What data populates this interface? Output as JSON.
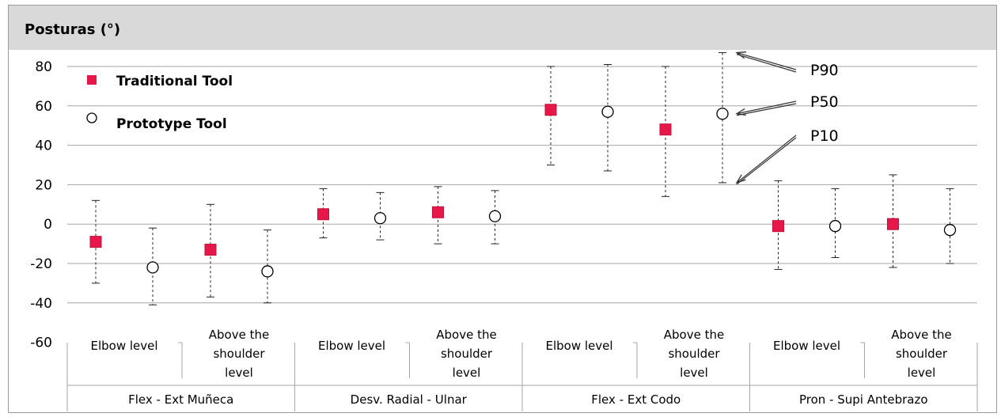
{
  "chart_data": {
    "type": "scatter",
    "title": "Posturas (°)",
    "ylim": [
      -60,
      80
    ],
    "yticks": [
      80,
      60,
      40,
      20,
      0,
      -20,
      -40,
      -60
    ],
    "grid": true,
    "legend_position": "top-left",
    "legend": [
      {
        "label": "Traditional Tool",
        "marker": "filled-square",
        "color": "#e8174a"
      },
      {
        "label": "Prototype Tool",
        "marker": "open-circle",
        "color": "#000000"
      }
    ],
    "groups": [
      "Flex - Ext  Muñeca",
      "Desv.  Radial - Ulnar",
      "Flex - Ext  Codo",
      "Pron - Supi Antebrazo"
    ],
    "subgroups": [
      "Elbow level",
      "Above the shoulder level"
    ],
    "points": [
      {
        "group": 0,
        "sub": 0,
        "tool": "Traditional Tool",
        "p10": -30,
        "p50": -9,
        "p90": 12
      },
      {
        "group": 0,
        "sub": 0,
        "tool": "Prototype Tool",
        "p10": -41,
        "p50": -22,
        "p90": -2
      },
      {
        "group": 0,
        "sub": 1,
        "tool": "Traditional Tool",
        "p10": -37,
        "p50": -13,
        "p90": 10
      },
      {
        "group": 0,
        "sub": 1,
        "tool": "Prototype Tool",
        "p10": -40,
        "p50": -24,
        "p90": -3
      },
      {
        "group": 1,
        "sub": 0,
        "tool": "Traditional Tool",
        "p10": -7,
        "p50": 5,
        "p90": 18
      },
      {
        "group": 1,
        "sub": 0,
        "tool": "Prototype Tool",
        "p10": -8,
        "p50": 3,
        "p90": 16
      },
      {
        "group": 1,
        "sub": 1,
        "tool": "Traditional Tool",
        "p10": -10,
        "p50": 6,
        "p90": 19
      },
      {
        "group": 1,
        "sub": 1,
        "tool": "Prototype Tool",
        "p10": -10,
        "p50": 4,
        "p90": 17
      },
      {
        "group": 2,
        "sub": 0,
        "tool": "Traditional Tool",
        "p10": 30,
        "p50": 58,
        "p90": 80
      },
      {
        "group": 2,
        "sub": 0,
        "tool": "Prototype Tool",
        "p10": 27,
        "p50": 57,
        "p90": 81
      },
      {
        "group": 2,
        "sub": 1,
        "tool": "Traditional Tool",
        "p10": 14,
        "p50": 48,
        "p90": 80
      },
      {
        "group": 2,
        "sub": 1,
        "tool": "Prototype Tool",
        "p10": 21,
        "p50": 56,
        "p90": 87
      },
      {
        "group": 3,
        "sub": 0,
        "tool": "Traditional Tool",
        "p10": -23,
        "p50": -1,
        "p90": 22
      },
      {
        "group": 3,
        "sub": 0,
        "tool": "Prototype Tool",
        "p10": -17,
        "p50": -1,
        "p90": 18
      },
      {
        "group": 3,
        "sub": 1,
        "tool": "Traditional Tool",
        "p10": -22,
        "p50": 0,
        "p90": 25
      },
      {
        "group": 3,
        "sub": 1,
        "tool": "Prototype Tool",
        "p10": -20,
        "p50": -3,
        "p90": 18
      }
    ],
    "annotations": [
      {
        "label": "P90",
        "target_point": 11,
        "target": "p90"
      },
      {
        "label": "P50",
        "target_point": 11,
        "target": "p50"
      },
      {
        "label": "P10",
        "target_point": 11,
        "target": "p10"
      }
    ]
  }
}
